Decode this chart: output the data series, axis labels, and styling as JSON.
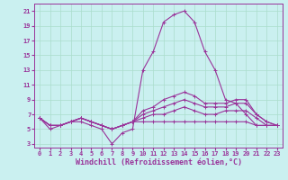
{
  "xlabel": "Windchill (Refroidissement éolien,°C)",
  "background_color": "#caf0f0",
  "line_color": "#993399",
  "grid_color": "#aaddcc",
  "xlim": [
    -0.5,
    23.5
  ],
  "ylim": [
    2.5,
    22
  ],
  "xtick_labels": [
    "0",
    "1",
    "2",
    "3",
    "4",
    "5",
    "6",
    "7",
    "8",
    "9",
    "10",
    "11",
    "12",
    "13",
    "14",
    "15",
    "16",
    "17",
    "18",
    "19",
    "20",
    "21",
    "22",
    "23"
  ],
  "yticks": [
    3,
    5,
    7,
    9,
    11,
    13,
    15,
    17,
    19,
    21
  ],
  "series": [
    [
      6.5,
      5.0,
      5.5,
      6.0,
      6.0,
      5.5,
      5.0,
      3.0,
      4.5,
      5.0,
      13.0,
      15.5,
      19.5,
      20.5,
      21.0,
      19.5,
      15.5,
      13.0,
      9.0,
      8.5,
      7.0,
      5.5,
      5.5,
      5.5
    ],
    [
      6.5,
      5.5,
      5.5,
      6.0,
      6.5,
      6.0,
      5.5,
      5.0,
      5.5,
      6.0,
      7.5,
      8.0,
      9.0,
      9.5,
      10.0,
      9.5,
      8.5,
      8.5,
      8.5,
      9.0,
      9.0,
      7.0,
      6.0,
      5.5
    ],
    [
      6.5,
      5.5,
      5.5,
      6.0,
      6.5,
      6.0,
      5.5,
      5.0,
      5.5,
      6.0,
      7.0,
      7.5,
      8.0,
      8.5,
      9.0,
      8.5,
      8.0,
      8.0,
      8.0,
      8.5,
      8.5,
      7.0,
      6.0,
      5.5
    ],
    [
      6.5,
      5.5,
      5.5,
      6.0,
      6.5,
      6.0,
      5.5,
      5.0,
      5.5,
      6.0,
      6.5,
      7.0,
      7.0,
      7.5,
      8.0,
      7.5,
      7.0,
      7.0,
      7.5,
      7.5,
      7.5,
      6.5,
      5.5,
      5.5
    ],
    [
      6.5,
      5.5,
      5.5,
      6.0,
      6.5,
      6.0,
      5.5,
      5.0,
      5.5,
      6.0,
      6.0,
      6.0,
      6.0,
      6.0,
      6.0,
      6.0,
      6.0,
      6.0,
      6.0,
      6.0,
      6.0,
      5.5,
      5.5,
      5.5
    ]
  ],
  "marker": "+",
  "markersize": 3,
  "linewidth": 0.8,
  "tick_fontsize": 5.0,
  "label_fontsize": 6.0
}
